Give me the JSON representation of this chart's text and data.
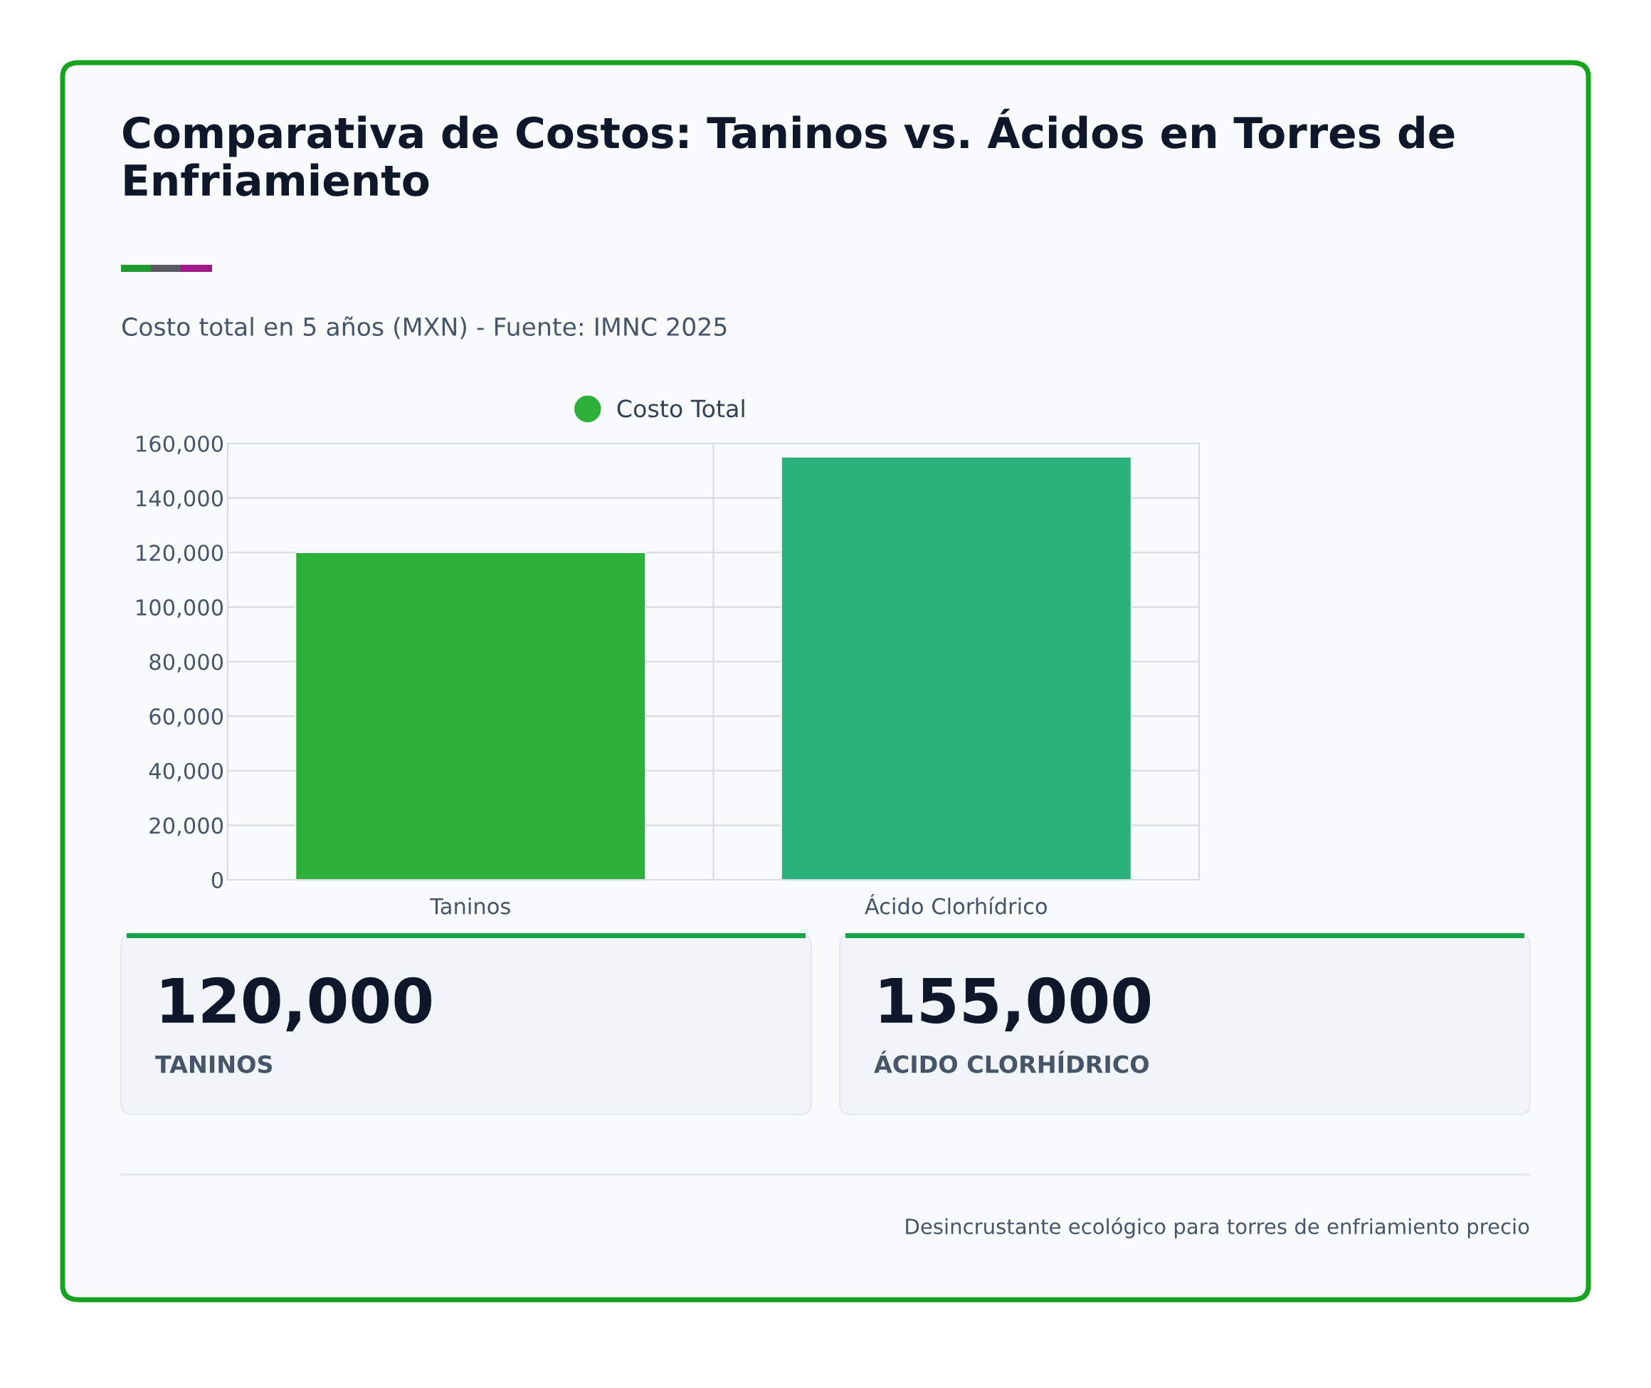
{
  "chart_data": {
    "type": "bar",
    "title": "Comparativa de Costos: Taninos vs. Ácidos en Torres de Enfriamiento",
    "subtitle": "Costo total en 5 años (MXN) - Fuente: IMNC 2025",
    "categories": [
      "Taninos",
      "Ácido Clorhídrico"
    ],
    "series": [
      {
        "name": "Costo Total",
        "colors": [
          "#2cb03a",
          "#2ab27a"
        ],
        "values": [
          120000,
          155000
        ]
      }
    ],
    "value_labels": [
      "120,000",
      "155,000"
    ],
    "ylim": [
      0,
      160000
    ],
    "yticks": [
      {
        "value": 0,
        "label": "0"
      },
      {
        "value": 20000,
        "label": "20,000"
      },
      {
        "value": 40000,
        "label": "40,000"
      },
      {
        "value": 60000,
        "label": "60,000"
      },
      {
        "value": 80000,
        "label": "80,000"
      },
      {
        "value": 100000,
        "label": "100,000"
      },
      {
        "value": 120000,
        "label": "120,000"
      },
      {
        "value": 140000,
        "label": "140,000"
      },
      {
        "value": 160000,
        "label": "160,000"
      }
    ],
    "grid": true,
    "legend": "top",
    "annotations": [
      "TANINOS",
      "ÁCIDO CLORHÍDRICO",
      "Desincrustante ecológico para torres de enfriamiento precio"
    ]
  }
}
